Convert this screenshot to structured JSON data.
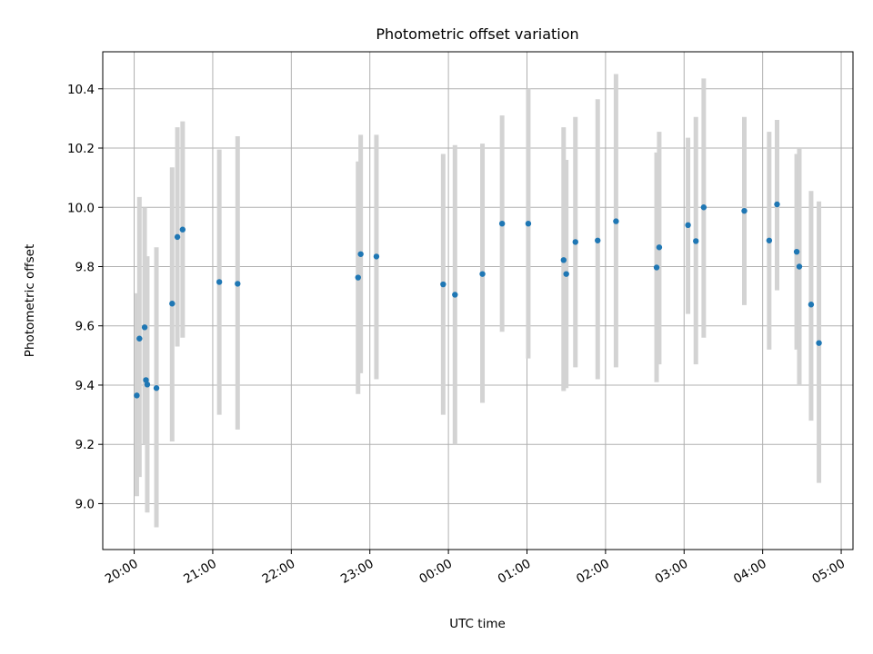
{
  "chart_data": {
    "type": "scatter",
    "title": "Photometric offset variation",
    "xlabel": "UTC time",
    "ylabel": "Photometric offset",
    "grid": true,
    "x_tick_labels": [
      "20:00",
      "21:00",
      "22:00",
      "23:00",
      "00:00",
      "01:00",
      "02:00",
      "03:00",
      "04:00",
      "05:00"
    ],
    "y_tick_labels": [
      "9.0",
      "9.2",
      "9.4",
      "9.6",
      "9.8",
      "10.0",
      "10.2",
      "10.4"
    ],
    "ylim": [
      8.845,
      10.525
    ],
    "xlim": [
      "19:36",
      "05:09"
    ],
    "colors": {
      "point": "#1f77b4",
      "errorbar": "#d3d3d3"
    },
    "series": [
      {
        "x": [
          "20:02",
          "20:04",
          "20:08",
          "20:09",
          "20:10",
          "20:17",
          "20:29",
          "20:33",
          "20:37",
          "21:05",
          "21:19",
          "22:51",
          "22:53",
          "23:05",
          "23:56",
          "00:05",
          "00:26",
          "00:41",
          "01:01",
          "01:28",
          "01:30",
          "01:37",
          "01:54",
          "02:08",
          "02:39",
          "02:41",
          "03:03",
          "03:09",
          "03:15",
          "03:46",
          "04:05",
          "04:11",
          "04:26",
          "04:28",
          "04:37",
          "04:43"
        ],
        "y": [
          9.365,
          9.557,
          9.595,
          9.417,
          9.402,
          9.39,
          9.675,
          9.9,
          9.925,
          9.748,
          9.742,
          9.763,
          9.842,
          9.834,
          9.74,
          9.705,
          9.775,
          9.945,
          9.945,
          9.822,
          9.775,
          9.883,
          9.888,
          9.953,
          9.797,
          9.865,
          9.94,
          9.886,
          10.0,
          9.988,
          9.888,
          10.01,
          9.85,
          9.8,
          9.672,
          9.542
        ],
        "err_low": [
          9.025,
          9.09,
          9.2,
          9.21,
          8.97,
          8.92,
          9.21,
          9.53,
          9.56,
          9.3,
          9.25,
          9.37,
          9.44,
          9.42,
          9.3,
          9.2,
          9.34,
          9.58,
          9.49,
          9.38,
          9.39,
          9.46,
          9.42,
          9.46,
          9.41,
          9.47,
          9.64,
          9.47,
          9.56,
          9.67,
          9.52,
          9.72,
          9.52,
          9.4,
          9.28,
          9.07
        ],
        "err_high": [
          9.71,
          10.035,
          10.0,
          9.625,
          9.835,
          9.865,
          10.135,
          10.27,
          10.29,
          10.195,
          10.24,
          10.155,
          10.245,
          10.245,
          10.18,
          10.21,
          10.215,
          10.31,
          10.4,
          10.27,
          10.16,
          10.305,
          10.365,
          10.45,
          10.185,
          10.255,
          10.235,
          10.305,
          10.435,
          10.305,
          10.255,
          10.295,
          10.18,
          10.2,
          10.055,
          10.02
        ]
      }
    ]
  }
}
